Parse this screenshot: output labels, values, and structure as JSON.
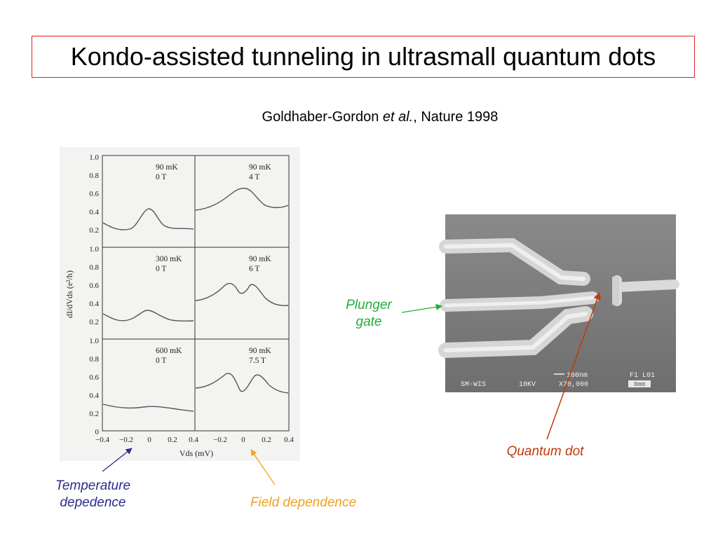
{
  "title": "Kondo-assisted tunneling in ultrasmall quantum dots",
  "citation": {
    "authors": "Goldhaber-Gordon ",
    "etal": "et al.",
    "journal": ", Nature 1998"
  },
  "figure": {
    "ylabel": "dI/dVds (e²/h)",
    "xlabel": "Vds (mV)",
    "yticks": [
      "1.0",
      "0.8",
      "0.6",
      "0.4",
      "0.2"
    ],
    "ytick_bottom": "0",
    "xticks": [
      "−0.4",
      "−0.2",
      "0",
      "0.2",
      "0.4"
    ],
    "xticks_right": [
      "−0.2",
      "0",
      "0.2",
      "0.4"
    ],
    "x_shared_tick": "0.4",
    "panels": [
      {
        "temp": "90  mK",
        "field": "0  T"
      },
      {
        "temp": "90  mK",
        "field": "4  T"
      },
      {
        "temp": "300  mK",
        "field": "0  T"
      },
      {
        "temp": "90  mK",
        "field": "6  T"
      },
      {
        "temp": "600  mK",
        "field": "0  T"
      },
      {
        "temp": "90  mK",
        "field": "7.5  T"
      }
    ]
  },
  "sem": {
    "scalebar_text": "100nm",
    "frame_id": "F1  L01",
    "instrument": "SM-WIS",
    "voltage": "10KV",
    "magnification": "X70,000",
    "working_distance": "8mm"
  },
  "colors": {
    "plunger": "#1fae3a",
    "dot": "#c0390b",
    "temperature": "#2c2c8c",
    "field": "#f0a020"
  },
  "annotations": {
    "plunger_line1": "Plunger",
    "plunger_line2": "gate",
    "quantum_dot": "Quantum dot",
    "temperature_line1": "Temperature",
    "temperature_line2": "depedence",
    "field": "Field dependence"
  }
}
